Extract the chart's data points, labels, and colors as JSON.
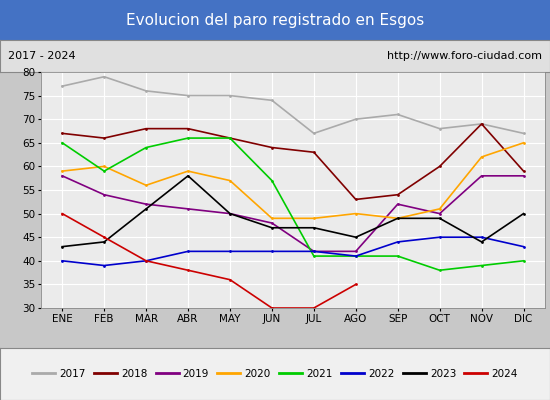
{
  "title": "Evolucion del paro registrado en Esgos",
  "subtitle_left": "2017 - 2024",
  "subtitle_right": "http://www.foro-ciudad.com",
  "months": [
    "ENE",
    "FEB",
    "MAR",
    "ABR",
    "MAY",
    "JUN",
    "JUL",
    "AGO",
    "SEP",
    "OCT",
    "NOV",
    "DIC"
  ],
  "ylim": [
    30,
    80
  ],
  "yticks": [
    30,
    35,
    40,
    45,
    50,
    55,
    60,
    65,
    70,
    75,
    80
  ],
  "series": {
    "2017": {
      "color": "#aaaaaa",
      "values": [
        77,
        79,
        76,
        75,
        75,
        74,
        67,
        70,
        71,
        68,
        69,
        67
      ]
    },
    "2018": {
      "color": "#800000",
      "values": [
        67,
        66,
        68,
        68,
        66,
        64,
        63,
        53,
        54,
        60,
        69,
        59
      ]
    },
    "2019": {
      "color": "#800080",
      "values": [
        58,
        54,
        52,
        51,
        50,
        48,
        42,
        42,
        52,
        50,
        58,
        58
      ]
    },
    "2020": {
      "color": "#ffa500",
      "values": [
        59,
        60,
        56,
        59,
        57,
        49,
        49,
        50,
        49,
        51,
        62,
        65
      ]
    },
    "2021": {
      "color": "#00cc00",
      "values": [
        65,
        59,
        64,
        66,
        66,
        57,
        41,
        41,
        41,
        38,
        39,
        40
      ]
    },
    "2022": {
      "color": "#0000cc",
      "values": [
        40,
        39,
        40,
        42,
        42,
        42,
        42,
        41,
        44,
        45,
        45,
        43
      ]
    },
    "2023": {
      "color": "#000000",
      "values": [
        43,
        44,
        51,
        58,
        50,
        47,
        47,
        45,
        49,
        49,
        44,
        50
      ]
    },
    "2024": {
      "color": "#cc0000",
      "values": [
        50,
        45,
        40,
        38,
        36,
        30,
        30,
        35,
        null,
        null,
        null,
        null
      ]
    }
  },
  "title_bg_color": "#4472c4",
  "title_text_color": "#ffffff",
  "subtitle_bg_color": "#e0e0e0",
  "plot_bg_color": "#ebebeb",
  "grid_color": "#ffffff",
  "legend_bg_color": "#f0f0f0"
}
